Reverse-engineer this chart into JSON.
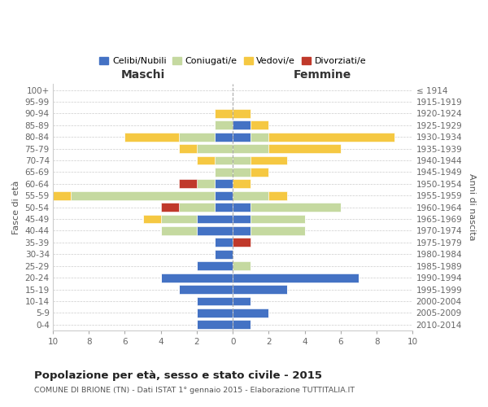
{
  "age_groups": [
    "100+",
    "95-99",
    "90-94",
    "85-89",
    "80-84",
    "75-79",
    "70-74",
    "65-69",
    "60-64",
    "55-59",
    "50-54",
    "45-49",
    "40-44",
    "35-39",
    "30-34",
    "25-29",
    "20-24",
    "15-19",
    "10-14",
    "5-9",
    "0-4"
  ],
  "birth_years": [
    "≤ 1914",
    "1915-1919",
    "1920-1924",
    "1925-1929",
    "1930-1934",
    "1935-1939",
    "1940-1944",
    "1945-1949",
    "1950-1954",
    "1955-1959",
    "1960-1964",
    "1965-1969",
    "1970-1974",
    "1975-1979",
    "1980-1984",
    "1985-1989",
    "1990-1994",
    "1995-1999",
    "2000-2004",
    "2005-2009",
    "2010-2014"
  ],
  "maschi": {
    "celibi": [
      0,
      0,
      0,
      0,
      1,
      0,
      0,
      0,
      1,
      1,
      1,
      2,
      2,
      1,
      1,
      2,
      4,
      3,
      2,
      2,
      2
    ],
    "coniugati": [
      0,
      0,
      0,
      1,
      2,
      2,
      1,
      1,
      1,
      8,
      2,
      2,
      2,
      0,
      0,
      0,
      0,
      0,
      0,
      0,
      0
    ],
    "vedovi": [
      0,
      0,
      1,
      0,
      3,
      1,
      1,
      0,
      0,
      1,
      0,
      1,
      0,
      0,
      0,
      0,
      0,
      0,
      0,
      0,
      0
    ],
    "divorziati": [
      0,
      0,
      0,
      0,
      0,
      0,
      0,
      0,
      1,
      0,
      1,
      0,
      0,
      0,
      0,
      0,
      0,
      0,
      0,
      0,
      0
    ]
  },
  "femmine": {
    "nubili": [
      0,
      0,
      0,
      1,
      1,
      0,
      0,
      0,
      0,
      0,
      1,
      1,
      1,
      0,
      0,
      0,
      7,
      3,
      1,
      2,
      1
    ],
    "coniugate": [
      0,
      0,
      0,
      0,
      1,
      2,
      1,
      1,
      0,
      2,
      5,
      3,
      3,
      0,
      0,
      1,
      0,
      0,
      0,
      0,
      0
    ],
    "vedove": [
      0,
      0,
      1,
      1,
      7,
      4,
      2,
      1,
      1,
      1,
      0,
      0,
      0,
      0,
      0,
      0,
      0,
      0,
      0,
      0,
      0
    ],
    "divorziate": [
      0,
      0,
      0,
      0,
      0,
      0,
      0,
      0,
      0,
      0,
      0,
      0,
      0,
      1,
      0,
      0,
      0,
      0,
      0,
      0,
      0
    ]
  },
  "colors": {
    "celibi_nubili": "#4472C4",
    "coniugati_e": "#C5D9A0",
    "vedovi_e": "#F5C842",
    "divorziati_e": "#C0392B"
  },
  "title": "Popolazione per età, sesso e stato civile - 2015",
  "subtitle": "COMUNE DI BRIONE (TN) - Dati ISTAT 1° gennaio 2015 - Elaborazione TUTTITALIA.IT",
  "maschi_label": "Maschi",
  "femmine_label": "Femmine",
  "ylabel_left": "Fasce di età",
  "ylabel_right": "Anni di nascita",
  "xlim": 10,
  "bg_color": "#ffffff",
  "grid_color": "#cccccc",
  "legend_labels": [
    "Celibi/Nubili",
    "Coniugati/e",
    "Vedovi/e",
    "Divorziati/e"
  ]
}
